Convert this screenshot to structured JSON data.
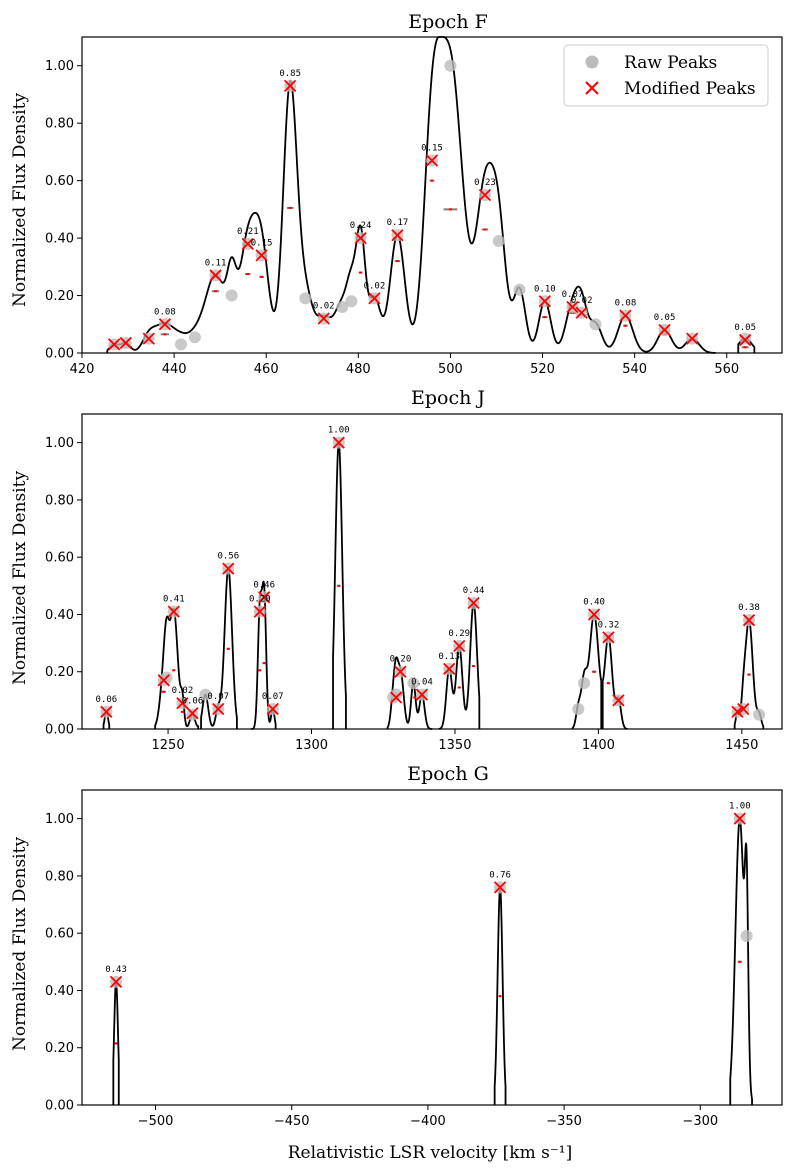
{
  "xlabel": "Relativistic LSR velocity [km s⁻¹]",
  "legend": {
    "raw": "Raw Peaks",
    "modified": "Modified Peaks"
  },
  "colors": {
    "line": "#000000",
    "raw": "#bbbbbb",
    "modified": "#ff0000",
    "width": "#808080"
  },
  "chart_data": [
    {
      "type": "line",
      "title": "Epoch F",
      "ylabel": "Normalized Flux Density",
      "xlim": [
        420,
        572
      ],
      "ylim": [
        0,
        1.1
      ],
      "xticks": [
        420,
        440,
        460,
        480,
        500,
        520,
        540,
        560
      ],
      "yticks": [
        0.0,
        0.2,
        0.4,
        0.6,
        0.8,
        1.0
      ],
      "legend": true,
      "segments": [
        [
          425.5,
          557.5
        ],
        [
          562.5,
          566
        ]
      ],
      "raw_peaks": [
        [
          427,
          0.03
        ],
        [
          429.5,
          0.035
        ],
        [
          434.5,
          0.05
        ],
        [
          438,
          0.1
        ],
        [
          441.5,
          0.03
        ],
        [
          444.5,
          0.055
        ],
        [
          449,
          0.27
        ],
        [
          452.5,
          0.2
        ],
        [
          456,
          0.38
        ],
        [
          459,
          0.34
        ],
        [
          465.2,
          0.93
        ],
        [
          468.5,
          0.19
        ],
        [
          472.5,
          0.12
        ],
        [
          476.5,
          0.16
        ],
        [
          478.5,
          0.18
        ],
        [
          480.5,
          0.4
        ],
        [
          483.5,
          0.19
        ],
        [
          488.5,
          0.41
        ],
        [
          496,
          0.67
        ],
        [
          500,
          1.0
        ],
        [
          507.5,
          0.55
        ],
        [
          510.5,
          0.39
        ],
        [
          515,
          0.22
        ],
        [
          520.5,
          0.18
        ],
        [
          526.5,
          0.16
        ],
        [
          528.5,
          0.14
        ],
        [
          531.5,
          0.1
        ],
        [
          538,
          0.13
        ],
        [
          546.5,
          0.08
        ],
        [
          552.5,
          0.05
        ],
        [
          564,
          0.05
        ]
      ],
      "modified_peaks": [
        [
          427,
          0.03
        ],
        [
          429.5,
          0.035
        ],
        [
          434.5,
          0.05
        ],
        [
          438,
          0.1
        ],
        [
          449,
          0.27
        ],
        [
          456,
          0.38
        ],
        [
          459,
          0.34
        ],
        [
          465.2,
          0.93
        ],
        [
          472.5,
          0.12
        ],
        [
          480.5,
          0.4
        ],
        [
          483.5,
          0.19
        ],
        [
          488.5,
          0.41
        ],
        [
          496,
          0.67
        ],
        [
          507.5,
          0.55
        ],
        [
          520.5,
          0.18
        ],
        [
          526.5,
          0.16
        ],
        [
          528.5,
          0.14
        ],
        [
          538,
          0.13
        ],
        [
          546.5,
          0.08
        ],
        [
          552.5,
          0.05
        ],
        [
          564,
          0.045
        ]
      ],
      "labels": [
        [
          438,
          0.1,
          "0.08"
        ],
        [
          449,
          0.27,
          "0.11"
        ],
        [
          456,
          0.38,
          "0.21"
        ],
        [
          459,
          0.34,
          "0.15"
        ],
        [
          465.2,
          0.93,
          "0.85"
        ],
        [
          472.5,
          0.12,
          "0.02"
        ],
        [
          480.5,
          0.4,
          "0.24"
        ],
        [
          483.5,
          0.19,
          "0.02"
        ],
        [
          488.5,
          0.41,
          "0.17"
        ],
        [
          496,
          0.67,
          "0.15"
        ],
        [
          507.5,
          0.55,
          "0.23"
        ],
        [
          520.5,
          0.18,
          "0.10"
        ],
        [
          526.5,
          0.16,
          "0.07"
        ],
        [
          528.5,
          0.14,
          "0.02"
        ],
        [
          538,
          0.13,
          "0.08"
        ],
        [
          546.5,
          0.08,
          "0.05"
        ],
        [
          564,
          0.045,
          "0.05"
        ]
      ],
      "half_widths": [
        [
          438,
          0.065,
          1.8
        ],
        [
          449,
          0.215,
          1.6
        ],
        [
          456,
          0.275,
          1.2
        ],
        [
          459,
          0.265,
          1.0
        ],
        [
          465.2,
          0.505,
          1.5
        ],
        [
          480.5,
          0.28,
          0.8
        ],
        [
          488.5,
          0.32,
          1.2
        ],
        [
          496,
          0.6,
          1.0
        ],
        [
          500,
          0.5,
          3.0
        ],
        [
          507.5,
          0.43,
          1.4
        ],
        [
          520.5,
          0.125,
          1.2
        ],
        [
          526.5,
          0.14,
          1.5
        ],
        [
          538,
          0.095,
          1.0
        ],
        [
          546.5,
          0.065,
          1.0
        ],
        [
          564,
          0.02,
          1.5
        ]
      ],
      "peak_widths": [
        [
          427,
          1.0
        ],
        [
          429.5,
          1.0
        ],
        [
          434.5,
          1.4
        ],
        [
          438,
          2.2
        ],
        [
          441.5,
          1.5
        ],
        [
          444.5,
          1.8
        ],
        [
          449,
          2.2
        ],
        [
          452.5,
          1.0
        ],
        [
          456,
          1.8
        ],
        [
          459,
          1.6
        ],
        [
          465.2,
          1.5
        ],
        [
          468.5,
          1.5
        ],
        [
          472.5,
          1.8
        ],
        [
          476.5,
          1.5
        ],
        [
          478.5,
          1.0
        ],
        [
          480.5,
          1.0
        ],
        [
          483.5,
          1.3
        ],
        [
          488.5,
          1.6
        ],
        [
          496,
          1.8
        ],
        [
          500,
          2.6
        ],
        [
          507.5,
          1.9
        ],
        [
          510.5,
          1.6
        ],
        [
          515,
          1.3
        ],
        [
          520.5,
          1.3
        ],
        [
          526.5,
          1.5
        ],
        [
          528.5,
          1.2
        ],
        [
          531.5,
          1.4
        ],
        [
          538,
          1.6
        ],
        [
          546.5,
          1.5
        ],
        [
          552.5,
          1.5
        ],
        [
          564,
          1.5
        ]
      ]
    },
    {
      "type": "line",
      "title": "Epoch J",
      "ylabel": "Normalized Flux Density",
      "xlim": [
        1220,
        1464
      ],
      "ylim": [
        0,
        1.1
      ],
      "xticks": [
        1250,
        1300,
        1350,
        1400,
        1450
      ],
      "yticks": [
        0.0,
        0.2,
        0.4,
        0.6,
        0.8,
        1.0
      ],
      "legend": false,
      "segments": [
        [
          1227.5,
          1229.5
        ],
        [
          1245.5,
          1260.5
        ],
        [
          1261.5,
          1274
        ],
        [
          1279,
          1287.5
        ],
        [
          1307.5,
          1312
        ],
        [
          1326.5,
          1342
        ],
        [
          1344.5,
          1358.5
        ],
        [
          1391,
          1401
        ],
        [
          1401.5,
          1410
        ],
        [
          1447.5,
          1457.5
        ]
      ],
      "raw_peaks": [
        [
          1228.5,
          0.06
        ],
        [
          1248.5,
          0.17
        ],
        [
          1249.5,
          0.18
        ],
        [
          1252,
          0.41
        ],
        [
          1255,
          0.09
        ],
        [
          1258.5,
          0.05
        ],
        [
          1263,
          0.12
        ],
        [
          1267.5,
          0.07
        ],
        [
          1271,
          0.56
        ],
        [
          1282,
          0.41
        ],
        [
          1283.5,
          0.46
        ],
        [
          1286.5,
          0.07
        ],
        [
          1309.5,
          1.0
        ],
        [
          1328.5,
          0.11
        ],
        [
          1329.5,
          0.12
        ],
        [
          1331,
          0.2
        ],
        [
          1335.5,
          0.16
        ],
        [
          1338.5,
          0.12
        ],
        [
          1348,
          0.21
        ],
        [
          1351.5,
          0.29
        ],
        [
          1356.5,
          0.44
        ],
        [
          1393,
          0.07
        ],
        [
          1395,
          0.16
        ],
        [
          1398.5,
          0.4
        ],
        [
          1403.5,
          0.32
        ],
        [
          1407,
          0.1
        ],
        [
          1448.5,
          0.06
        ],
        [
          1450.5,
          0.07
        ],
        [
          1452.5,
          0.38
        ],
        [
          1456,
          0.05
        ]
      ],
      "modified_peaks": [
        [
          1228.5,
          0.06
        ],
        [
          1248.5,
          0.17
        ],
        [
          1252,
          0.41
        ],
        [
          1255,
          0.09
        ],
        [
          1258.5,
          0.055
        ],
        [
          1267.5,
          0.07
        ],
        [
          1271,
          0.56
        ],
        [
          1282,
          0.41
        ],
        [
          1283.5,
          0.46
        ],
        [
          1286.5,
          0.07
        ],
        [
          1309.5,
          1.0
        ],
        [
          1329.5,
          0.11
        ],
        [
          1331,
          0.2
        ],
        [
          1338.5,
          0.12
        ],
        [
          1348,
          0.21
        ],
        [
          1351.5,
          0.29
        ],
        [
          1356.5,
          0.44
        ],
        [
          1398.5,
          0.4
        ],
        [
          1403.5,
          0.32
        ],
        [
          1407,
          0.1
        ],
        [
          1448.5,
          0.06
        ],
        [
          1450.5,
          0.07
        ],
        [
          1452.5,
          0.38
        ]
      ],
      "labels": [
        [
          1228.5,
          0.06,
          "0.06"
        ],
        [
          1252,
          0.41,
          "0.41"
        ],
        [
          1255,
          0.09,
          "0.02"
        ],
        [
          1258.5,
          0.055,
          "0.06"
        ],
        [
          1267.5,
          0.07,
          "0.07"
        ],
        [
          1271,
          0.56,
          "0.56"
        ],
        [
          1282,
          0.41,
          "0.20"
        ],
        [
          1283.5,
          0.46,
          "0.46"
        ],
        [
          1286.5,
          0.07,
          "0.07"
        ],
        [
          1309.5,
          1.0,
          "1.00"
        ],
        [
          1331,
          0.2,
          "0.20"
        ],
        [
          1338.5,
          0.12,
          "0.04"
        ],
        [
          1348,
          0.21,
          "0.13"
        ],
        [
          1351.5,
          0.29,
          "0.29"
        ],
        [
          1356.5,
          0.44,
          "0.44"
        ],
        [
          1398.5,
          0.4,
          "0.40"
        ],
        [
          1403.5,
          0.32,
          "0.32"
        ],
        [
          1452.5,
          0.38,
          "0.38"
        ]
      ],
      "half_widths": [
        [
          1252,
          0.205,
          1.0
        ],
        [
          1248.5,
          0.13,
          1.5
        ],
        [
          1255,
          0.06,
          0.6
        ],
        [
          1271,
          0.28,
          1.0
        ],
        [
          1282,
          0.205,
          0.6
        ],
        [
          1283.5,
          0.23,
          0.6
        ],
        [
          1309.5,
          0.5,
          1.0
        ],
        [
          1331,
          0.12,
          1.0
        ],
        [
          1336,
          0.11,
          0.8
        ],
        [
          1351.5,
          0.145,
          1.0
        ],
        [
          1356.5,
          0.22,
          1.0
        ],
        [
          1398.5,
          0.2,
          1.5
        ],
        [
          1403.5,
          0.16,
          1.2
        ],
        [
          1452.5,
          0.19,
          1.2
        ]
      ],
      "peak_widths": [
        [
          1228.5,
          0.6
        ],
        [
          1248.5,
          1.3
        ],
        [
          1249.5,
          0.9
        ],
        [
          1252,
          1.4
        ],
        [
          1255,
          0.6
        ],
        [
          1258.5,
          0.9
        ],
        [
          1263,
          1.0
        ],
        [
          1267.5,
          0.9
        ],
        [
          1271,
          1.3
        ],
        [
          1282,
          0.7
        ],
        [
          1283.5,
          0.7
        ],
        [
          1286.5,
          0.6
        ],
        [
          1309.5,
          1.2
        ],
        [
          1328.5,
          0.8
        ],
        [
          1329.5,
          0.7
        ],
        [
          1331,
          1.1
        ],
        [
          1335.5,
          0.8
        ],
        [
          1338.5,
          0.9
        ],
        [
          1348,
          1.0
        ],
        [
          1351.5,
          1.1
        ],
        [
          1356.5,
          1.2
        ],
        [
          1393,
          0.8
        ],
        [
          1395,
          1.0
        ],
        [
          1398.5,
          1.6
        ],
        [
          1403.5,
          1.3
        ],
        [
          1407,
          0.9
        ],
        [
          1448.5,
          0.6
        ],
        [
          1450.5,
          0.7
        ],
        [
          1452.5,
          1.3
        ],
        [
          1456,
          0.8
        ]
      ]
    },
    {
      "type": "line",
      "title": "Epoch G",
      "ylabel": "Normalized Flux Density",
      "xlabel": "Relativistic LSR velocity [km s⁻¹]",
      "xlim": [
        -527,
        -270
      ],
      "ylim": [
        0,
        1.1
      ],
      "xticks": [
        -500,
        -450,
        -400,
        -350,
        -300
      ],
      "yticks": [
        0.0,
        0.2,
        0.4,
        0.6,
        0.8,
        1.0
      ],
      "legend": false,
      "segments": [
        [
          -515.5,
          -513.5
        ],
        [
          -375.5,
          -371.5
        ],
        [
          -289,
          -281
        ]
      ],
      "raw_peaks": [
        [
          -514.5,
          0.43
        ],
        [
          -373.5,
          0.76
        ],
        [
          -285.5,
          1.0
        ],
        [
          -283,
          0.59
        ]
      ],
      "modified_peaks": [
        [
          -514.5,
          0.43
        ],
        [
          -373.5,
          0.76
        ],
        [
          -285.5,
          1.0
        ]
      ],
      "labels": [
        [
          -514.5,
          0.43,
          "0.43"
        ],
        [
          -373.5,
          0.76,
          "0.76"
        ],
        [
          -285.5,
          1.0,
          "1.00"
        ]
      ],
      "half_widths": [
        [
          -514.5,
          0.215,
          0.8
        ],
        [
          -373.5,
          0.38,
          1.0
        ],
        [
          -285.5,
          0.5,
          1.5
        ]
      ],
      "peak_widths": [
        [
          -514.5,
          0.7
        ],
        [
          -373.5,
          0.9
        ],
        [
          -285.5,
          1.6
        ],
        [
          -283,
          0.6
        ]
      ]
    }
  ]
}
